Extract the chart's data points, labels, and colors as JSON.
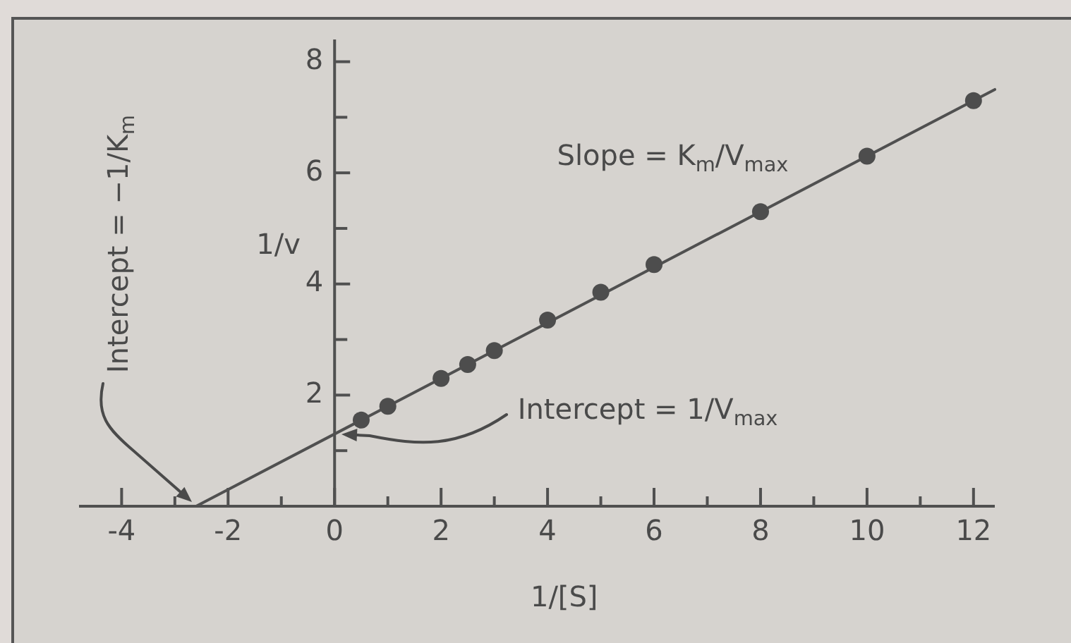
{
  "chart_data": {
    "type": "scatter",
    "xlabel": "1/[S]",
    "ylabel": "1/v",
    "annotations": [
      "Slope = K$_{m}$/V$_{max}$",
      "Intercept = 1/V$_{max}$",
      "Intercept = −1/K$_{m}$"
    ],
    "series": [
      {
        "color": "#4d4d4d",
        "x": [
          0.5,
          1,
          2,
          2.5,
          3,
          4,
          5,
          6,
          8,
          10,
          12
        ],
        "values": [
          1.55,
          1.8,
          2.3,
          2.55,
          2.8,
          3.35,
          3.85,
          4.35,
          5.3,
          6.3,
          7.3
        ]
      },
      {
        "type": "line",
        "color": "#505050",
        "x": [
          -2.6,
          12.4
        ],
        "values": [
          0,
          7.5
        ],
        "marker": "none"
      }
    ],
    "xlim": [
      -4.8,
      12.4
    ],
    "ylim": [
      0,
      8.4
    ],
    "xticks": [
      -4,
      {
        "value": -3,
        "label": null
      },
      -2,
      {
        "value": -1,
        "label": null
      },
      0,
      {
        "value": 1,
        "label": null
      },
      2,
      {
        "value": 3,
        "label": null
      },
      4,
      {
        "value": 5,
        "label": null
      },
      6,
      {
        "value": 7,
        "label": null
      },
      8,
      {
        "value": 9,
        "label": null
      },
      10,
      {
        "value": 11,
        "label": null
      },
      12
    ],
    "yticks": [
      {
        "value": 1,
        "label": null
      },
      2,
      {
        "value": 3,
        "label": null
      },
      4,
      {
        "value": 5,
        "label": null
      },
      6,
      {
        "value": 7,
        "label": null
      },
      8
    ],
    "marker": "circle",
    "line_style": "solid"
  }
}
